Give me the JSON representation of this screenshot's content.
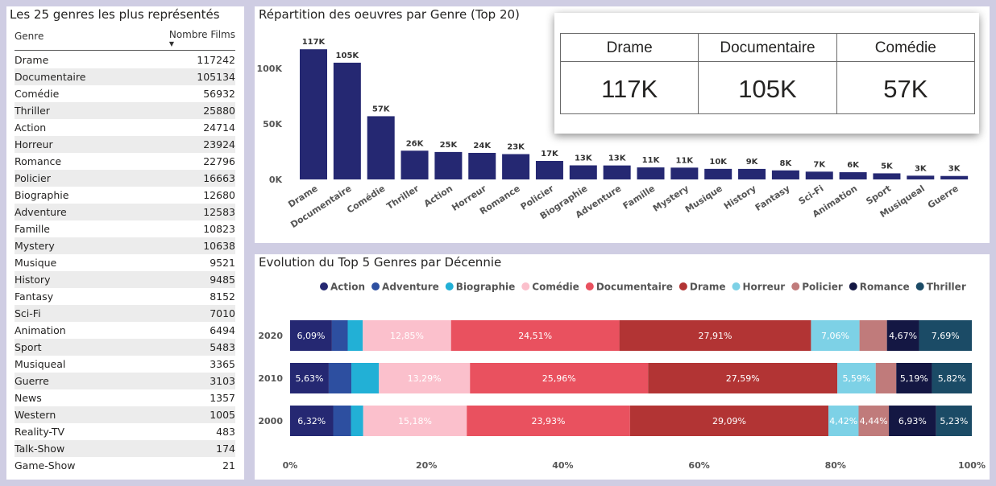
{
  "table": {
    "title": "Les 25 genres les plus représentés",
    "col_genre": "Genre",
    "col_count": "Nombre Films",
    "rows": [
      {
        "genre": "Drame",
        "count": "117242"
      },
      {
        "genre": "Documentaire",
        "count": "105134"
      },
      {
        "genre": "Comédie",
        "count": "56932"
      },
      {
        "genre": "Thriller",
        "count": "25880"
      },
      {
        "genre": "Action",
        "count": "24714"
      },
      {
        "genre": "Horreur",
        "count": "23924"
      },
      {
        "genre": "Romance",
        "count": "22796"
      },
      {
        "genre": "Policier",
        "count": "16663"
      },
      {
        "genre": "Biographie",
        "count": "12680"
      },
      {
        "genre": "Adventure",
        "count": "12583"
      },
      {
        "genre": "Famille",
        "count": "10823"
      },
      {
        "genre": "Mystery",
        "count": "10638"
      },
      {
        "genre": "Musique",
        "count": "9521"
      },
      {
        "genre": "History",
        "count": "9485"
      },
      {
        "genre": "Fantasy",
        "count": "8152"
      },
      {
        "genre": "Sci-Fi",
        "count": "7010"
      },
      {
        "genre": "Animation",
        "count": "6494"
      },
      {
        "genre": "Sport",
        "count": "5483"
      },
      {
        "genre": "Musiqueal",
        "count": "3365"
      },
      {
        "genre": "Guerre",
        "count": "3103"
      },
      {
        "genre": "News",
        "count": "1357"
      },
      {
        "genre": "Western",
        "count": "1005"
      },
      {
        "genre": "Reality-TV",
        "count": "483"
      },
      {
        "genre": "Talk-Show",
        "count": "174"
      },
      {
        "genre": "Game-Show",
        "count": "21"
      }
    ]
  },
  "kpi": [
    {
      "label": "Drame",
      "value": "117K"
    },
    {
      "label": "Documentaire",
      "value": "105K"
    },
    {
      "label": "Comédie",
      "value": "57K"
    }
  ],
  "chart_data": [
    {
      "type": "bar",
      "title": "Répartition des oeuvres par Genre (Top 20)",
      "categories": [
        "Drame",
        "Documentaire",
        "Comédie",
        "Thriller",
        "Action",
        "Horreur",
        "Romance",
        "Policier",
        "Biographie",
        "Adventure",
        "Famille",
        "Mystery",
        "Musique",
        "History",
        "Fantasy",
        "Sci-Fi",
        "Animation",
        "Sport",
        "Musiqueal",
        "Guerre"
      ],
      "values": [
        117242,
        105134,
        56932,
        25880,
        24714,
        23924,
        22796,
        16663,
        12680,
        12583,
        10823,
        10638,
        9521,
        9485,
        8152,
        7010,
        6494,
        5483,
        3365,
        3103
      ],
      "data_labels": [
        "117K",
        "105K",
        "57K",
        "26K",
        "25K",
        "24K",
        "23K",
        "17K",
        "13K",
        "13K",
        "11K",
        "11K",
        "10K",
        "9K",
        "8K",
        "7K",
        "6K",
        "5K",
        "3K",
        "3K"
      ],
      "ylim": [
        0,
        125000
      ],
      "yticks": [
        0,
        50000,
        100000
      ],
      "ytick_labels": [
        "0K",
        "50K",
        "100K"
      ],
      "color": "#252872"
    },
    {
      "type": "bar",
      "stacked": "percent",
      "orientation": "horizontal",
      "title": "Evolution du Top 5 Genres par Décennie",
      "categories": [
        "2020",
        "2010",
        "2000"
      ],
      "xlim": [
        0,
        100
      ],
      "xticks": [
        0,
        20,
        40,
        60,
        80,
        100
      ],
      "xtick_labels": [
        "0%",
        "20%",
        "40%",
        "60%",
        "80%",
        "100%"
      ],
      "legend_position": "top",
      "series": [
        {
          "name": "Action",
          "color": "#252872",
          "values": [
            6.09,
            5.63,
            6.32
          ],
          "labels": [
            "6,09%",
            "5,63%",
            "6,32%"
          ]
        },
        {
          "name": "Adventure",
          "color": "#2d4fa0",
          "values": [
            2.3,
            3.3,
            2.6
          ],
          "labels": [
            "",
            "",
            ""
          ]
        },
        {
          "name": "Biographie",
          "color": "#22b0d6",
          "values": [
            2.2,
            4.0,
            1.8
          ],
          "labels": [
            "",
            "",
            ""
          ]
        },
        {
          "name": "Comédie",
          "color": "#fbc0cc",
          "values": [
            12.85,
            13.29,
            15.18
          ],
          "labels": [
            "12,85%",
            "13,29%",
            "15,18%"
          ]
        },
        {
          "name": "Documentaire",
          "color": "#e9515f",
          "values": [
            24.51,
            25.96,
            23.93
          ],
          "labels": [
            "24,51%",
            "25,96%",
            "23,93%"
          ]
        },
        {
          "name": "Drame",
          "color": "#b23434",
          "values": [
            27.91,
            27.59,
            29.09
          ],
          "labels": [
            "27,91%",
            "27,59%",
            "29,09%"
          ]
        },
        {
          "name": "Horreur",
          "color": "#7dd1e6",
          "values": [
            7.06,
            5.59,
            4.42
          ],
          "labels": [
            "7,06%",
            "5,59%",
            "4,42%"
          ]
        },
        {
          "name": "Policier",
          "color": "#c07b7b",
          "values": [
            4.0,
            3.0,
            4.44
          ],
          "labels": [
            "",
            "",
            "4,44%"
          ]
        },
        {
          "name": "Romance",
          "color": "#141743",
          "values": [
            4.67,
            5.19,
            6.93
          ],
          "labels": [
            "4,67%",
            "5,19%",
            "6,93%"
          ]
        },
        {
          "name": "Thriller",
          "color": "#1b4b66",
          "values": [
            7.69,
            5.82,
            5.23
          ],
          "labels": [
            "7,69%",
            "5,82%",
            "5,23%"
          ]
        }
      ]
    }
  ]
}
